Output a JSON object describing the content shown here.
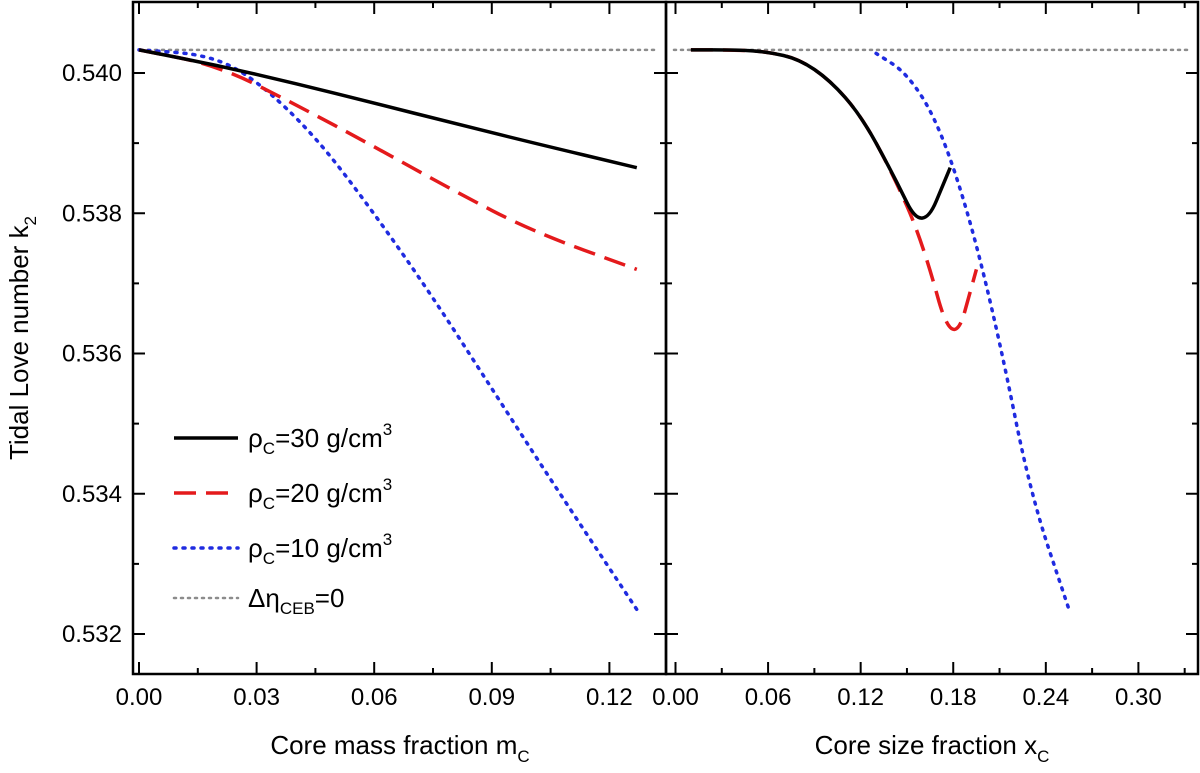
{
  "ylabel": "Tidal Love number k",
  "ylabel_sub": "2",
  "legend": [
    {
      "series": "rho30",
      "prefix": "ρ",
      "sub": "C",
      "text": "=30 g/cm",
      "sup": "3"
    },
    {
      "series": "rho20",
      "prefix": "ρ",
      "sub": "C",
      "text": "=20 g/cm",
      "sup": "3"
    },
    {
      "series": "rho10",
      "prefix": "ρ",
      "sub": "C",
      "text": "=10 g/cm",
      "sup": "3"
    },
    {
      "series": "ref",
      "prefix": "Δη",
      "sub": "CEB",
      "text": "=0",
      "sup": ""
    }
  ],
  "colors": {
    "rho30": "#000000",
    "rho20": "#e41a1c",
    "rho10": "#1f2be0",
    "ref": "#8c8c8c"
  },
  "chart_data": [
    {
      "type": "line",
      "xlabel": "Core mass fraction m",
      "xlabel_sub": "C",
      "xlim": [
        0.0,
        0.13
      ],
      "ylim": [
        0.5312,
        0.5413
      ],
      "xticks": [
        "0.00",
        "0.03",
        "0.06",
        "0.09",
        "0.12"
      ],
      "xtick_values": [
        0.0,
        0.03,
        0.06,
        0.09,
        0.12
      ],
      "yticks": [
        "0.532",
        "0.534",
        "0.536",
        "0.538",
        "0.540"
      ],
      "ytick_values": [
        0.532,
        0.534,
        0.536,
        0.538,
        0.54
      ],
      "series": [
        {
          "key": "rho30",
          "name": "ρC=30 g/cm3",
          "style": "solid",
          "x": [
            0.0,
            0.02,
            0.04,
            0.06,
            0.08,
            0.1,
            0.127
          ],
          "y": [
            0.54033,
            0.54011,
            0.53985,
            0.53957,
            0.53929,
            0.53901,
            0.53865
          ]
        },
        {
          "key": "rho20",
          "name": "ρC=20 g/cm3",
          "style": "dashed",
          "x": [
            0.0,
            0.02,
            0.04,
            0.06,
            0.08,
            0.1,
            0.127
          ],
          "y": [
            0.54033,
            0.54011,
            0.53955,
            0.53895,
            0.53833,
            0.53775,
            0.5372
          ]
        },
        {
          "key": "rho10",
          "name": "ρC=10 g/cm3",
          "style": "dotted",
          "x": [
            0.0,
            0.018,
            0.03,
            0.045,
            0.06,
            0.075,
            0.09,
            0.105,
            0.127
          ],
          "y": [
            0.54033,
            0.54026,
            0.5399,
            0.5391,
            0.538,
            0.5368,
            0.5355,
            0.5342,
            0.53235
          ]
        },
        {
          "key": "ref",
          "name": "Δη_CEB=0",
          "style": "ref-dotted",
          "x": [
            0.0,
            0.127
          ],
          "y": [
            0.54033,
            0.54033
          ]
        }
      ]
    },
    {
      "type": "line",
      "xlabel": "Core size fraction x",
      "xlabel_sub": "C",
      "xlim": [
        0.0,
        0.33
      ],
      "ylim": [
        0.5312,
        0.5413
      ],
      "xticks": [
        "0.00",
        "0.06",
        "0.12",
        "0.18",
        "0.24",
        "0.30"
      ],
      "xtick_values": [
        0.0,
        0.06,
        0.12,
        0.18,
        0.24,
        0.3
      ],
      "series": [
        {
          "key": "rho30",
          "name": "ρC=30 g/cm3",
          "style": "solid",
          "x": [
            0.01,
            0.04,
            0.06,
            0.08,
            0.1,
            0.12,
            0.14,
            0.16,
            0.178
          ],
          "y": [
            0.54033,
            0.54033,
            0.5403,
            0.5402,
            0.5399,
            0.5394,
            0.5386,
            0.5377,
            0.53865
          ]
        },
        {
          "key": "rho20",
          "name": "ρC=20 g/cm3",
          "style": "dashed",
          "x": [
            0.01,
            0.04,
            0.06,
            0.08,
            0.1,
            0.12,
            0.14,
            0.16,
            0.18,
            0.195
          ],
          "y": [
            0.54033,
            0.54033,
            0.5403,
            0.5402,
            0.5399,
            0.5394,
            0.5386,
            0.5376,
            0.536,
            0.5372
          ]
        },
        {
          "key": "rho10",
          "name": "ρC=10 g/cm3",
          "style": "dotted",
          "x": [
            0.13,
            0.15,
            0.17,
            0.19,
            0.21,
            0.23,
            0.255
          ],
          "y": [
            0.54028,
            0.54,
            0.5393,
            0.538,
            0.5362,
            0.534,
            0.53235
          ]
        },
        {
          "key": "ref",
          "name": "Δη_CEB=0",
          "style": "ref-dotted",
          "x": [
            0.0,
            0.33
          ],
          "y": [
            0.54033,
            0.54033
          ]
        }
      ]
    }
  ]
}
